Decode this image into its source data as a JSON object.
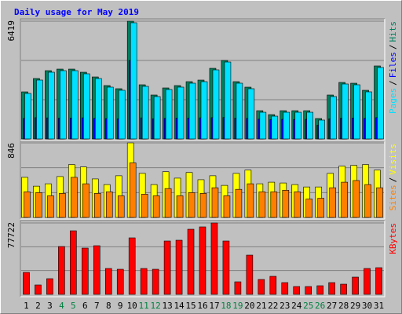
{
  "chart_data": [
    {
      "type": "bar",
      "title": "Daily usage for May 2019",
      "ylim": [
        0,
        6419
      ],
      "yticks": [
        6419
      ],
      "legend_separator": "/",
      "series": [
        {
          "name": "Hits",
          "color": "#00805c",
          "values": [
            2567,
            3295,
            3723,
            3808,
            3808,
            3637,
            3380,
            2910,
            2739,
            6419,
            2953,
            2396,
            2781,
            2910,
            3124,
            3209,
            3851,
            4279,
            3124,
            2824,
            1540,
            1326,
            1540,
            1540,
            1540,
            1113,
            2396,
            3081,
            3038,
            2653,
            3980
          ]
        },
        {
          "name": "Files",
          "color": "#0000ff",
          "values": [
            1120,
            1160,
            1150,
            1130,
            1140,
            1150,
            1120,
            1110,
            1100,
            4280,
            1150,
            1100,
            1120,
            1130,
            1140,
            1150,
            1160,
            1170,
            1130,
            1120,
            1080,
            1050,
            1070,
            1060,
            1070,
            750,
            1100,
            1130,
            1140,
            1120,
            1160
          ]
        },
        {
          "name": "Pages",
          "color": "#00e0ff",
          "values": [
            2482,
            3210,
            3638,
            3723,
            3723,
            3552,
            3295,
            2825,
            2654,
            6334,
            2868,
            2311,
            2696,
            2825,
            3039,
            3124,
            3766,
            4194,
            3039,
            2739,
            1455,
            1241,
            1455,
            1455,
            1455,
            1028,
            2311,
            2996,
            2953,
            2568,
            3895
          ]
        }
      ]
    },
    {
      "type": "bar",
      "ylim": [
        0,
        846
      ],
      "yticks": [
        846
      ],
      "legend_separator": "/",
      "series": [
        {
          "name": "Visits",
          "color": "#ffff00",
          "values": [
            455,
            355,
            382,
            464,
            600,
            573,
            437,
            373,
            473,
            846,
            500,
            373,
            519,
            446,
            510,
            428,
            473,
            364,
            500,
            537,
            382,
            400,
            391,
            373,
            346,
            346,
            500,
            582,
            591,
            600,
            537
          ]
        },
        {
          "name": "Sites",
          "color": "#ff8000",
          "values": [
            291,
            282,
            246,
            273,
            455,
            382,
            273,
            291,
            246,
            619,
            264,
            246,
            328,
            246,
            282,
            273,
            337,
            246,
            319,
            382,
            291,
            291,
            309,
            291,
            209,
            218,
            337,
            400,
            419,
            373,
            337
          ]
        }
      ]
    },
    {
      "type": "bar",
      "ylim": [
        0,
        77722
      ],
      "yticks": [
        77722
      ],
      "categories": [
        "1",
        "2",
        "3",
        "4",
        "5",
        "6",
        "7",
        "8",
        "9",
        "10",
        "11",
        "12",
        "13",
        "14",
        "15",
        "16",
        "17",
        "18",
        "19",
        "20",
        "21",
        "22",
        "23",
        "24",
        "25",
        "26",
        "27",
        "28",
        "29",
        "30",
        "31"
      ],
      "category_colors": [
        "#000000",
        "#000000",
        "#000000",
        "#008040",
        "#008040",
        "#000000",
        "#000000",
        "#000000",
        "#000000",
        "#000000",
        "#008040",
        "#008040",
        "#000000",
        "#000000",
        "#000000",
        "#000000",
        "#000000",
        "#008040",
        "#008040",
        "#000000",
        "#000000",
        "#000000",
        "#000000",
        "#000000",
        "#008040",
        "#008040",
        "#000000",
        "#000000",
        "#000000",
        "#000000",
        "#000000"
      ],
      "series": [
        {
          "name": "KBytes",
          "color": "#ff0000",
          "values": [
            23900,
            10250,
            17080,
            52090,
            69170,
            50380,
            52950,
            28180,
            27330,
            61490,
            28180,
            27330,
            58070,
            58920,
            70880,
            73440,
            77722,
            58070,
            13660,
            42700,
            16230,
            19640,
            12810,
            8540,
            8540,
            9390,
            12810,
            11100,
            18790,
            28180,
            29040
          ]
        }
      ]
    }
  ]
}
